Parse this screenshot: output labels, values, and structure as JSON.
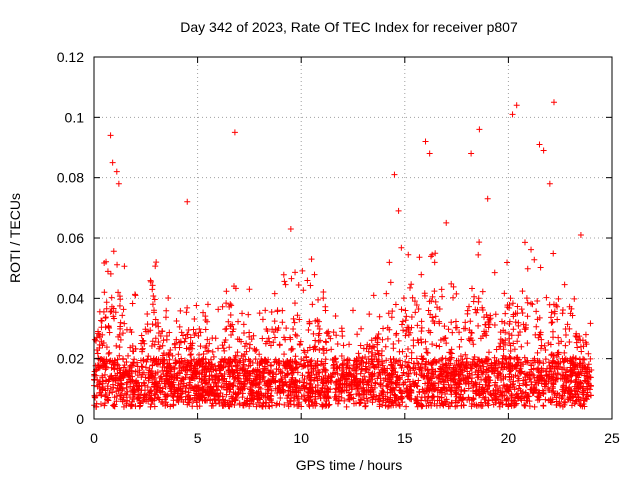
{
  "chart_data": {
    "type": "scatter",
    "title": "Day 342 of 2023, Rate Of TEC Index for receiver p807",
    "xlabel": "GPS time / hours",
    "ylabel": "ROTI / TECUs",
    "xlim": [
      0,
      25
    ],
    "ylim": [
      0,
      0.12
    ],
    "x_ticks": [
      0,
      5,
      10,
      15,
      20,
      25
    ],
    "x_tick_labels": [
      "0",
      "5",
      "10",
      "15",
      "20",
      "25"
    ],
    "y_ticks": [
      0,
      0.02,
      0.04,
      0.06,
      0.08,
      0.1,
      0.12
    ],
    "y_tick_labels": [
      "0",
      "0.02",
      "0.04",
      "0.06",
      "0.08",
      "0.1",
      "0.12"
    ],
    "grid": true,
    "legend": "none",
    "marker": "plus",
    "color": "#ff0000",
    "x_data_range": [
      0,
      24
    ],
    "series": [
      {
        "x": [
          0.8,
          0.9,
          1.1,
          1.2,
          4.5,
          6.8,
          14.5,
          14.7,
          16.0,
          16.2,
          18.2,
          18.6,
          20.2,
          20.4,
          21.5,
          21.7,
          22.0,
          22.2,
          23.5,
          0.5,
          2.0,
          3.0,
          5.5,
          7.5,
          9.5,
          10.5,
          12.5,
          13.5,
          17.0,
          19.0,
          23.0
        ],
        "y": [
          0.094,
          0.085,
          0.082,
          0.078,
          0.072,
          0.095,
          0.081,
          0.069,
          0.092,
          0.088,
          0.088,
          0.096,
          0.101,
          0.104,
          0.091,
          0.089,
          0.078,
          0.105,
          0.061,
          0.042,
          0.041,
          0.052,
          0.038,
          0.043,
          0.063,
          0.053,
          0.036,
          0.041,
          0.065,
          0.073,
          0.035
        ]
      }
    ],
    "noise_profile": {
      "hours": [
        0,
        0.5,
        1,
        1.5,
        2,
        2.5,
        3,
        3.5,
        4,
        4.5,
        5,
        5.5,
        6,
        6.5,
        7,
        7.5,
        8,
        8.5,
        9,
        9.5,
        10,
        10.5,
        11,
        11.5,
        12,
        12.5,
        13,
        13.5,
        14,
        14.5,
        15,
        15.5,
        16,
        16.5,
        17,
        17.5,
        18,
        18.5,
        19,
        19.5,
        20,
        20.5,
        21,
        21.5,
        22,
        22.5,
        23,
        23.5,
        24
      ],
      "peak": [
        0.03,
        0.045,
        0.055,
        0.045,
        0.035,
        0.035,
        0.045,
        0.035,
        0.03,
        0.035,
        0.03,
        0.03,
        0.03,
        0.04,
        0.045,
        0.035,
        0.028,
        0.035,
        0.04,
        0.045,
        0.045,
        0.04,
        0.04,
        0.032,
        0.025,
        0.02,
        0.025,
        0.03,
        0.04,
        0.05,
        0.05,
        0.045,
        0.05,
        0.048,
        0.04,
        0.035,
        0.045,
        0.055,
        0.05,
        0.04,
        0.045,
        0.055,
        0.05,
        0.055,
        0.05,
        0.045,
        0.035,
        0.03,
        0.025
      ]
    }
  }
}
